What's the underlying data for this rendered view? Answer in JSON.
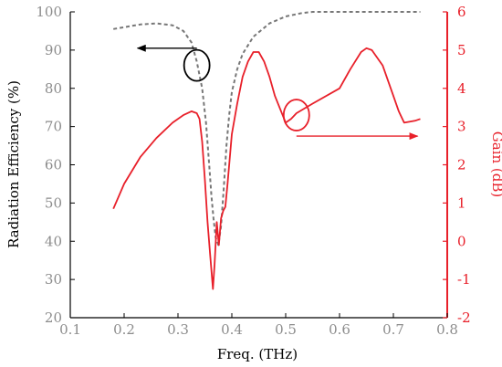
{
  "chart_data": {
    "type": "line",
    "title": "",
    "xlabel": "Freq. (THz)",
    "ylabel_left": "Radiation Efficiency (%)",
    "ylabel_right": "Gain (dB)",
    "xlim": [
      0.1,
      0.8
    ],
    "ylim_left": [
      20,
      100
    ],
    "ylim_right": [
      -2,
      6
    ],
    "x_ticks": [
      "0.1",
      "0.2",
      "0.3",
      "0.4",
      "0.5",
      "0.6",
      "0.7",
      "0.8"
    ],
    "y_left_ticks": [
      "20",
      "30",
      "40",
      "50",
      "60",
      "70",
      "80",
      "90",
      "100"
    ],
    "y_right_ticks": [
      "-2",
      "-1",
      "0",
      "1",
      "2",
      "3",
      "4",
      "5",
      "6"
    ],
    "grid": false,
    "legend": "none",
    "colors": {
      "efficiency": "#777777",
      "gain": "#e8202a",
      "left_axis": "#000000",
      "right_axis": "#e8202a"
    },
    "series": [
      {
        "axis": "left",
        "style": "dashed",
        "x": [
          0.18,
          0.2,
          0.23,
          0.26,
          0.29,
          0.31,
          0.325,
          0.335,
          0.345,
          0.352,
          0.358,
          0.362,
          0.366,
          0.37,
          0.375,
          0.38,
          0.385,
          0.39,
          0.395,
          0.4,
          0.41,
          0.42,
          0.44,
          0.47,
          0.5,
          0.53,
          0.55,
          0.6,
          0.65,
          0.7,
          0.75
        ],
        "values": [
          95.5,
          96,
          96.7,
          97,
          96.5,
          95,
          92,
          87,
          80,
          71,
          60,
          52,
          46,
          41,
          39,
          44,
          54,
          65,
          73,
          79,
          85,
          89,
          93.5,
          97,
          98.8,
          99.7,
          100,
          100,
          100,
          100,
          100
        ]
      },
      {
        "axis": "right",
        "style": "solid",
        "x": [
          0.18,
          0.2,
          0.23,
          0.26,
          0.29,
          0.31,
          0.325,
          0.335,
          0.34,
          0.345,
          0.35,
          0.355,
          0.36,
          0.365,
          0.368,
          0.372,
          0.376,
          0.38,
          0.384,
          0.388,
          0.392,
          0.4,
          0.41,
          0.42,
          0.43,
          0.44,
          0.45,
          0.46,
          0.47,
          0.48,
          0.5,
          0.51,
          0.52,
          0.55,
          0.6,
          0.62,
          0.64,
          0.65,
          0.66,
          0.68,
          0.7,
          0.71,
          0.72,
          0.74,
          0.75
        ],
        "values": [
          0.85,
          1.5,
          2.2,
          2.7,
          3.1,
          3.3,
          3.4,
          3.35,
          3.2,
          2.6,
          1.6,
          0.5,
          -0.4,
          -1.25,
          -0.6,
          0.5,
          -0.1,
          0.6,
          0.8,
          0.9,
          1.5,
          2.8,
          3.6,
          4.3,
          4.7,
          4.95,
          4.95,
          4.7,
          4.3,
          3.8,
          3.1,
          3.2,
          3.35,
          3.6,
          4.0,
          4.5,
          4.95,
          5.05,
          5.0,
          4.6,
          3.8,
          3.4,
          3.1,
          3.15,
          3.2
        ]
      }
    ],
    "annotations": [
      {
        "type": "circle",
        "series": "efficiency",
        "at": [
          0.335,
          86
        ],
        "color": "#000000"
      },
      {
        "type": "arrow",
        "color": "#000000",
        "from": [
          0.335,
          90.5
        ],
        "to": [
          0.225,
          90.5
        ]
      },
      {
        "type": "circle",
        "series": "gain",
        "at": [
          0.52,
          3.3
        ],
        "color": "#e8202a"
      },
      {
        "type": "arrow",
        "color": "#e8202a",
        "from": [
          0.52,
          2.75
        ],
        "to": [
          0.745,
          2.75
        ]
      }
    ]
  }
}
